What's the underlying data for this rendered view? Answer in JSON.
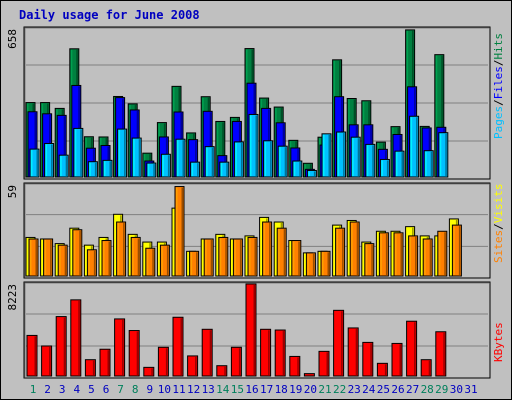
{
  "title": "Daily usage for June 2008",
  "colors": {
    "hits": "#008040",
    "files": "#0000ff",
    "pages": "#00c0ff",
    "visits": "#ffff00",
    "sites": "#ff8000",
    "kbytes": "#ff0000",
    "weekend_day": "#00805c",
    "weekday": "#0000c0"
  },
  "chart_data": [
    {
      "type": "bar",
      "name": "hits-files-pages",
      "ymax_label": "658",
      "ymax": 658,
      "legend": [
        {
          "key": "pages",
          "label": "Pages"
        },
        {
          "sep": "/"
        },
        {
          "key": "files",
          "label": "Files"
        },
        {
          "sep": "/"
        },
        {
          "key": "hits",
          "label": "Hits"
        }
      ],
      "categories": [
        1,
        2,
        3,
        4,
        5,
        6,
        7,
        8,
        9,
        10,
        11,
        12,
        13,
        14,
        15,
        16,
        17,
        18,
        19,
        20,
        21,
        22,
        23,
        24,
        25,
        26,
        27,
        28,
        29,
        30,
        31
      ],
      "series": [
        {
          "name": "Hits",
          "key": "hits",
          "values": [
            331,
            331,
            305,
            570,
            179,
            178,
            358,
            325,
            106,
            242,
            403,
            196,
            357,
            247,
            265,
            571,
            351,
            311,
            163,
            61,
            177,
            521,
            349,
            339,
            155,
            224,
            654,
            225,
            544,
            0,
            0
          ]
        },
        {
          "name": "Files",
          "key": "files",
          "values": [
            290,
            281,
            274,
            407,
            128,
            140,
            353,
            298,
            71,
            178,
            289,
            166,
            292,
            95,
            247,
            417,
            305,
            241,
            129,
            34,
            142,
            357,
            232,
            232,
            123,
            189,
            401,
            218,
            221,
            0,
            0
          ]
        },
        {
          "name": "Pages",
          "key": "pages",
          "values": [
            124,
            149,
            97,
            216,
            68,
            74,
            213,
            173,
            62,
            101,
            168,
            66,
            135,
            66,
            156,
            278,
            161,
            137,
            71,
            29,
            192,
            200,
            177,
            145,
            78,
            115,
            270,
            117,
            197,
            0,
            0
          ]
        }
      ]
    },
    {
      "type": "bar",
      "name": "visits-sites",
      "ymax_label": "59",
      "ymax": 59,
      "legend": [
        {
          "key": "sites",
          "label": "Sites"
        },
        {
          "sep": "/"
        },
        {
          "key": "visits",
          "label": "Visits"
        }
      ],
      "categories": [
        1,
        2,
        3,
        4,
        5,
        6,
        7,
        8,
        9,
        10,
        11,
        12,
        13,
        14,
        15,
        16,
        17,
        18,
        19,
        20,
        21,
        22,
        23,
        24,
        25,
        26,
        27,
        28,
        29,
        30,
        31
      ],
      "series": [
        {
          "name": "Visits",
          "key": "visits",
          "values": [
            25,
            24,
            21,
            31,
            20,
            25,
            40,
            27,
            22,
            22,
            44,
            16,
            24,
            27,
            24,
            26,
            38,
            35,
            23,
            15,
            16,
            33,
            36,
            22,
            29,
            29,
            32,
            26,
            26,
            37,
            0
          ]
        },
        {
          "name": "Sites",
          "key": "sites",
          "values": [
            24,
            24,
            20,
            30,
            17,
            23,
            35,
            25,
            18,
            20,
            58,
            16,
            24,
            25,
            24,
            25,
            35,
            31,
            23,
            15,
            16,
            31,
            35,
            21,
            28,
            28,
            26,
            24,
            29,
            33,
            0
          ]
        }
      ]
    },
    {
      "type": "bar",
      "name": "kbytes",
      "ymax_label": "8223",
      "ymax": 8223,
      "legend": [
        {
          "key": "kbytes",
          "label": "KBytes"
        }
      ],
      "categories": [
        1,
        2,
        3,
        4,
        5,
        6,
        7,
        8,
        9,
        10,
        11,
        12,
        13,
        14,
        15,
        16,
        17,
        18,
        19,
        20,
        21,
        22,
        23,
        24,
        25,
        26,
        27,
        28,
        29,
        30,
        31
      ],
      "series": [
        {
          "name": "KBytes",
          "key": "kbytes",
          "values": [
            3627,
            2684,
            5311,
            6806,
            1458,
            2392,
            5102,
            4064,
            773,
            2566,
            5250,
            1795,
            4175,
            921,
            2566,
            8223,
            4175,
            4109,
            1749,
            211,
            2203,
            5869,
            4296,
            3004,
            1132,
            2911,
            4896,
            1458,
            3955,
            0,
            0
          ]
        }
      ]
    }
  ],
  "days": [
    {
      "label": "1",
      "weekend": true
    },
    {
      "label": "2",
      "weekend": false
    },
    {
      "label": "3",
      "weekend": false
    },
    {
      "label": "4",
      "weekend": false
    },
    {
      "label": "5",
      "weekend": false
    },
    {
      "label": "6",
      "weekend": false
    },
    {
      "label": "7",
      "weekend": true
    },
    {
      "label": "8",
      "weekend": true
    },
    {
      "label": "9",
      "weekend": false
    },
    {
      "label": "10",
      "weekend": false
    },
    {
      "label": "11",
      "weekend": false
    },
    {
      "label": "12",
      "weekend": false
    },
    {
      "label": "13",
      "weekend": false
    },
    {
      "label": "14",
      "weekend": true
    },
    {
      "label": "15",
      "weekend": true
    },
    {
      "label": "16",
      "weekend": false
    },
    {
      "label": "17",
      "weekend": false
    },
    {
      "label": "18",
      "weekend": false
    },
    {
      "label": "19",
      "weekend": false
    },
    {
      "label": "20",
      "weekend": false
    },
    {
      "label": "21",
      "weekend": true
    },
    {
      "label": "22",
      "weekend": true
    },
    {
      "label": "23",
      "weekend": false
    },
    {
      "label": "24",
      "weekend": false
    },
    {
      "label": "25",
      "weekend": false
    },
    {
      "label": "26",
      "weekend": false
    },
    {
      "label": "27",
      "weekend": false
    },
    {
      "label": "28",
      "weekend": true
    },
    {
      "label": "29",
      "weekend": true
    },
    {
      "label": "30",
      "weekend": false
    },
    {
      "label": "31",
      "weekend": false
    }
  ]
}
